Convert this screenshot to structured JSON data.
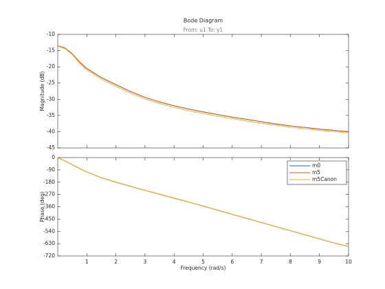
{
  "chart_data": [
    {
      "type": "line",
      "title": "Bode Diagram",
      "subtitle": "From: u1  To: y1",
      "ylabel": "Magnitude (dB)",
      "xlim": [
        0,
        10
      ],
      "xticks": [
        1,
        2,
        3,
        4,
        5,
        6,
        7,
        8,
        9,
        10
      ],
      "ylim": [
        -45,
        -10
      ],
      "yticks": [
        -10,
        -15,
        -20,
        -25,
        -30,
        -35,
        -40,
        -45
      ],
      "x": [
        0,
        0.25,
        0.5,
        0.75,
        1,
        1.5,
        2,
        2.5,
        3,
        3.5,
        4,
        4.5,
        5,
        5.5,
        6,
        6.5,
        7,
        7.5,
        8,
        8.5,
        9,
        9.5,
        10
      ],
      "series": [
        {
          "name": "m0",
          "color": "#0072bd",
          "values": [
            -13.5,
            -14.2,
            -16.0,
            -18.5,
            -20.5,
            -23.3,
            -25.5,
            -27.6,
            -29.4,
            -30.8,
            -32.0,
            -33.0,
            -33.9,
            -34.7,
            -35.5,
            -36.2,
            -36.9,
            -37.6,
            -38.2,
            -38.7,
            -39.2,
            -39.6,
            -40.0
          ]
        },
        {
          "name": "m5",
          "color": "#d95319",
          "values": [
            -13.5,
            -14.2,
            -16.0,
            -18.5,
            -20.5,
            -23.3,
            -25.5,
            -27.6,
            -29.4,
            -30.8,
            -32.0,
            -33.0,
            -33.9,
            -34.7,
            -35.5,
            -36.2,
            -36.9,
            -37.6,
            -38.2,
            -38.7,
            -39.2,
            -39.6,
            -40.0
          ]
        },
        {
          "name": "m5Canon",
          "color": "#edb120",
          "values": [
            -13.6,
            -14.4,
            -16.2,
            -18.8,
            -20.9,
            -23.8,
            -26.0,
            -28.1,
            -29.9,
            -31.3,
            -32.5,
            -33.5,
            -34.4,
            -35.2,
            -36.0,
            -36.7,
            -37.4,
            -38.0,
            -38.6,
            -39.1,
            -39.6,
            -40.0,
            -40.4
          ]
        }
      ]
    },
    {
      "type": "line",
      "ylabel": "Phase (deg)",
      "xlabel": "Frequency  (rad/s)",
      "legend": "upper right",
      "xlim": [
        0,
        10
      ],
      "xticks": [
        1,
        2,
        3,
        4,
        5,
        6,
        7,
        8,
        9,
        10
      ],
      "ylim": [
        -720,
        0
      ],
      "yticks": [
        0,
        -90,
        -180,
        -270,
        -360,
        -450,
        -540,
        -630,
        -720
      ],
      "x": [
        0,
        0.25,
        0.5,
        0.75,
        1,
        1.5,
        2,
        2.5,
        3,
        3.5,
        4,
        4.5,
        5,
        5.5,
        6,
        6.5,
        7,
        7.5,
        8,
        8.5,
        9,
        9.5,
        10
      ],
      "series": [
        {
          "name": "m0",
          "color": "#0072bd",
          "values": [
            0,
            -25,
            -52,
            -80,
            -105,
            -148,
            -180,
            -210,
            -240,
            -268,
            -297,
            -325,
            -355,
            -385,
            -415,
            -445,
            -475,
            -505,
            -535,
            -565,
            -595,
            -625,
            -650
          ]
        },
        {
          "name": "m5",
          "color": "#d95319",
          "values": [
            0,
            -25,
            -52,
            -80,
            -105,
            -148,
            -180,
            -210,
            -240,
            -268,
            -297,
            -325,
            -355,
            -385,
            -415,
            -445,
            -475,
            -505,
            -535,
            -565,
            -595,
            -625,
            -650
          ]
        },
        {
          "name": "m5Canon",
          "color": "#edb120",
          "values": [
            0,
            -25,
            -52,
            -80,
            -105,
            -148,
            -180,
            -210,
            -240,
            -268,
            -297,
            -325,
            -355,
            -385,
            -415,
            -445,
            -475,
            -505,
            -535,
            -565,
            -595,
            -625,
            -650
          ]
        }
      ]
    }
  ]
}
